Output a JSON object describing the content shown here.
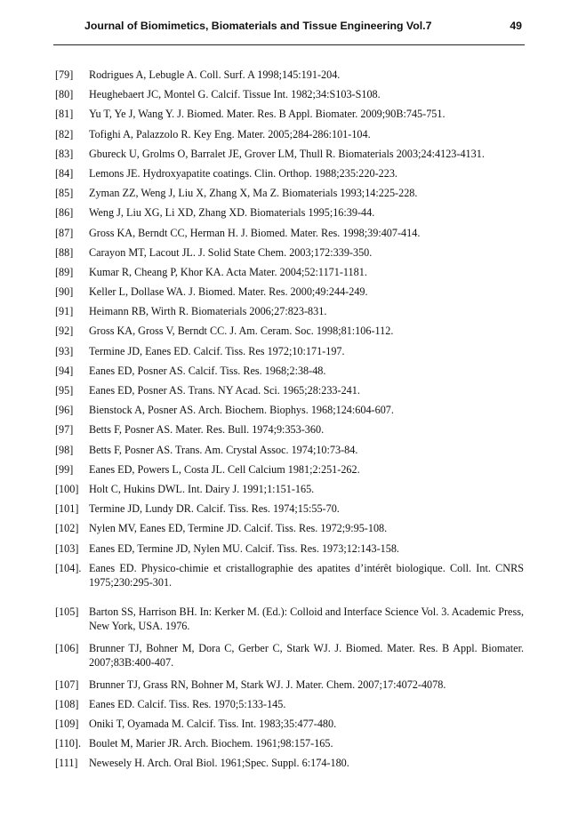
{
  "header": {
    "title": "Journal of Biomimetics, Biomaterials and Tissue Engineering Vol.7",
    "page_number": "49"
  },
  "references": [
    {
      "num": "[79]",
      "text": "Rodrigues A, Lebugle A. Coll. Surf. A 1998;145:191-204."
    },
    {
      "num": "[80]",
      "text": "Heughebaert JC, Montel G. Calcif. Tissue Int. 1982;34:S103-S108."
    },
    {
      "num": "[81]",
      "text": "Yu T, Ye J, Wang Y. J. Biomed. Mater. Res. B Appl. Biomater. 2009;90B:745-751."
    },
    {
      "num": "[82]",
      "text": "Tofighi A, Palazzolo R. Key Eng. Mater. 2005;284-286:101-104."
    },
    {
      "num": "[83]",
      "text": "Gbureck U, Grolms O, Barralet JE, Grover LM, Thull R. Biomaterials 2003;24:4123-4131."
    },
    {
      "num": "[84]",
      "text": "Lemons JE. Hydroxyapatite coatings. Clin. Orthop. 1988;235:220-223."
    },
    {
      "num": "[85]",
      "text": "Zyman ZZ, Weng J, Liu X, Zhang X, Ma Z. Biomaterials 1993;14:225-228."
    },
    {
      "num": "[86]",
      "text": "Weng J, Liu XG, Li XD, Zhang XD. Biomaterials 1995;16:39-44."
    },
    {
      "num": "[87]",
      "text": "Gross KA, Berndt CC, Herman H. J. Biomed. Mater. Res. 1998;39:407-414."
    },
    {
      "num": "[88]",
      "text": "Carayon MT, Lacout JL. J. Solid State Chem. 2003;172:339-350."
    },
    {
      "num": "[89]",
      "text": "Kumar R, Cheang P, Khor KA. Acta Mater. 2004;52:1171-1181."
    },
    {
      "num": "[90]",
      "text": "Keller L, Dollase WA. J. Biomed. Mater. Res. 2000;49:244-249."
    },
    {
      "num": "[91]",
      "text": "Heimann RB, Wirth R. Biomaterials 2006;27:823-831."
    },
    {
      "num": "[92]",
      "text": "Gross KA, Gross V, Berndt CC. J. Am. Ceram. Soc. 1998;81:106-112."
    },
    {
      "num": "[93]",
      "text": "Termine JD, Eanes ED. Calcif. Tiss. Res 1972;10:171-197."
    },
    {
      "num": "[94]",
      "text": "Eanes ED, Posner AS. Calcif. Tiss. Res. 1968;2:38-48."
    },
    {
      "num": "[95]",
      "text": "Eanes ED, Posner AS. Trans. NY Acad. Sci. 1965;28:233-241."
    },
    {
      "num": "[96]",
      "text": "Bienstock A, Posner AS. Arch. Biochem. Biophys. 1968;124:604-607."
    },
    {
      "num": "[97]",
      "text": "Betts F, Posner AS. Mater. Res. Bull. 1974;9:353-360."
    },
    {
      "num": "[98]",
      "text": "Betts F, Posner AS. Trans. Am. Crystal Assoc. 1974;10:73-84."
    },
    {
      "num": "[99]",
      "text": "Eanes ED, Powers L, Costa JL. Cell Calcium 1981;2:251-262."
    },
    {
      "num": "[100]",
      "text": "Holt C, Hukins DWL. Int. Dairy J. 1991;1:151-165."
    },
    {
      "num": "[101]",
      "text": "Termine JD, Lundy DR. Calcif. Tiss. Res. 1974;15:55-70."
    },
    {
      "num": "[102]",
      "text": "Nylen MV, Eanes ED, Termine JD. Calcif. Tiss. Res. 1972;9:95-108."
    },
    {
      "num": "[103]",
      "text": "Eanes ED, Termine JD, Nylen MU. Calcif. Tiss. Res. 1973;12:143-158."
    },
    {
      "num": "[104].",
      "text": "Eanes ED. Physico-chimie et cristallographie des apatites d’intérêt biologique. Coll. Int. CNRS 1975;230:295-301."
    },
    {
      "num": "[105]",
      "text": "Barton SS, Harrison BH. In: Kerker M. (Ed.): Colloid and Interface Science Vol. 3. Academic Press, New York, USA. 1976."
    },
    {
      "num": "[106]",
      "text": "Brunner TJ, Bohner M, Dora C, Gerber C, Stark WJ. J. Biomed. Mater. Res. B Appl. Biomater. 2007;83B:400-407."
    },
    {
      "num": "[107]",
      "text": "Brunner TJ, Grass RN, Bohner M, Stark WJ. J. Mater. Chem. 2007;17:4072-4078."
    },
    {
      "num": "[108]",
      "text": "Eanes ED. Calcif. Tiss. Res. 1970;5:133-145."
    },
    {
      "num": "[109]",
      "text": "Oniki T, Oyamada M. Calcif. Tiss. Int. 1983;35:477-480."
    },
    {
      "num": "[110].",
      "text": "Boulet M, Marier JR. Arch. Biochem. 1961;98:157-165."
    },
    {
      "num": "[111]",
      "text": "Newesely H. Arch. Oral Biol. 1961;Spec. Suppl. 6:174-180."
    }
  ]
}
